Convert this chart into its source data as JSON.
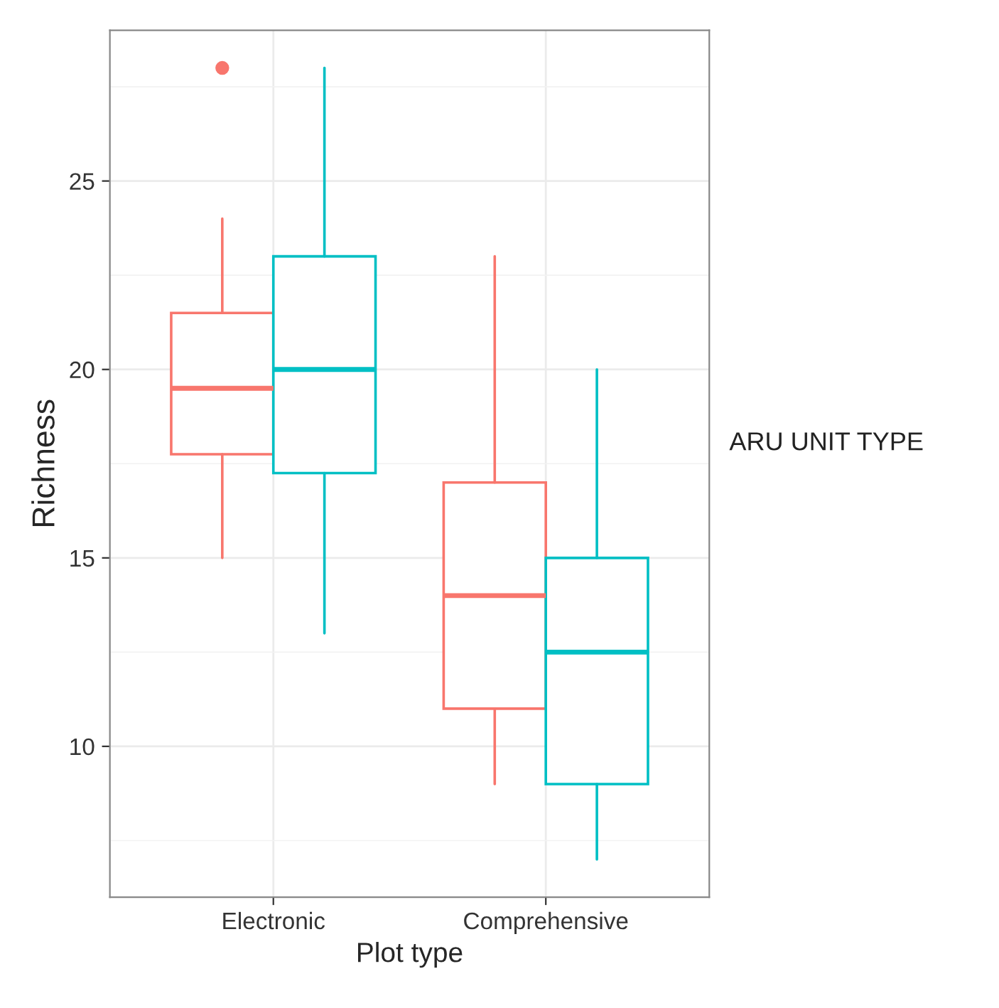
{
  "chart_data": {
    "type": "box",
    "xlabel": "Plot type",
    "ylabel": "Richness",
    "annotations": [
      "ARU UNIT TYPE"
    ],
    "grid": true,
    "categories": [
      "Electronic",
      "Comprehensive"
    ],
    "ylim": [
      6,
      29
    ],
    "yticks": [
      10,
      15,
      20,
      25
    ],
    "series": [
      {
        "color": "#f8766d",
        "boxes": [
          {
            "low": 15,
            "q1": 17.75,
            "median": 19.5,
            "q3": 21.5,
            "high": 24,
            "outliers": [
              28
            ]
          },
          {
            "low": 9,
            "q1": 11,
            "median": 14,
            "q3": 17,
            "high": 23
          }
        ]
      },
      {
        "color": "#00bfc4",
        "boxes": [
          {
            "low": 13,
            "q1": 17.25,
            "median": 20,
            "q3": 23,
            "high": 28
          },
          {
            "low": 7,
            "q1": 9,
            "median": 12.5,
            "q3": 15,
            "high": 20
          }
        ]
      }
    ]
  }
}
